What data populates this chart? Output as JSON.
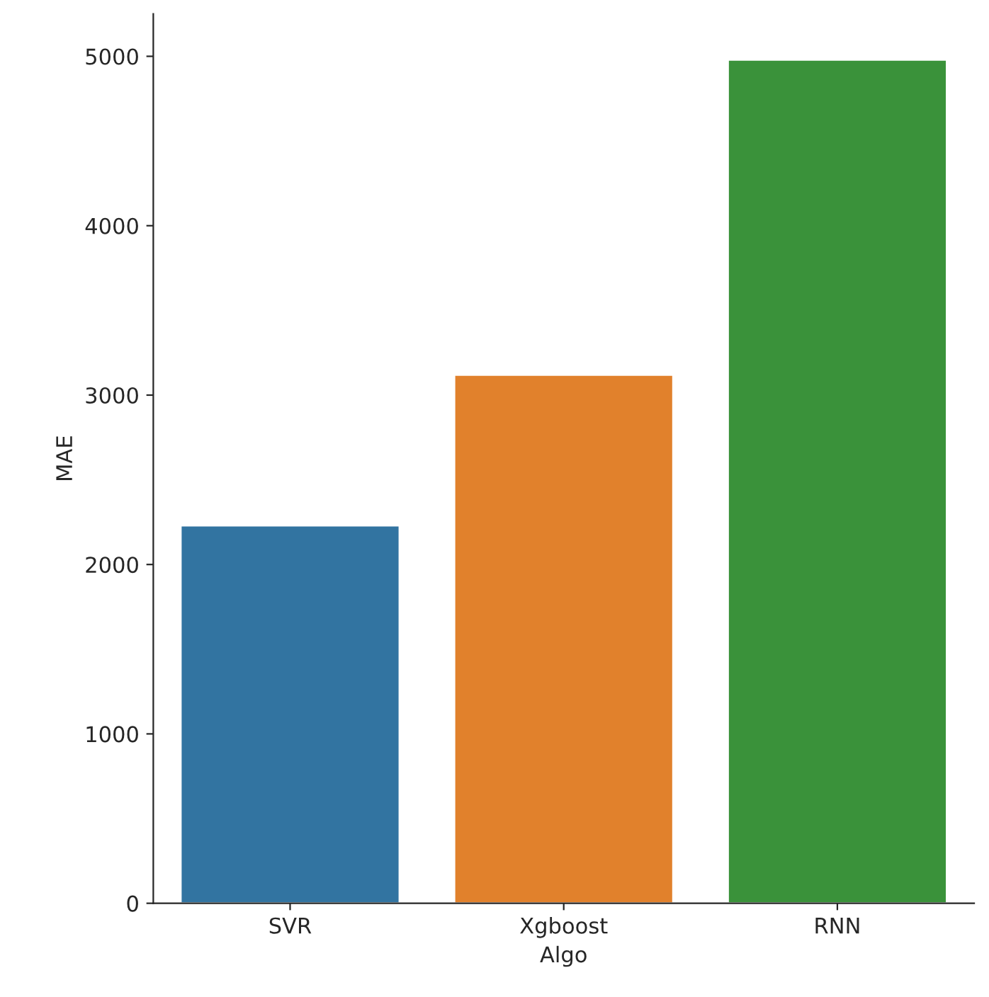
{
  "chart_data": {
    "type": "bar",
    "xlabel": "Algo",
    "ylabel": "MAE",
    "categories": [
      "SVR",
      "Xgboost",
      "RNN"
    ],
    "values": [
      2230,
      3120,
      4980
    ],
    "colors": [
      "#3274a1",
      "#e1812c",
      "#3a923a"
    ],
    "ylim": [
      0,
      5250
    ],
    "yticks": [
      0,
      1000,
      2000,
      3000,
      4000,
      5000
    ],
    "grid": false
  }
}
